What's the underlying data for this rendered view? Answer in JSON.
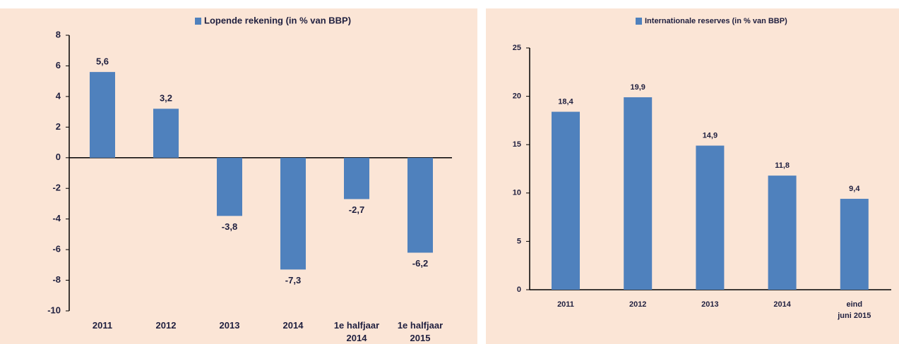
{
  "chart_data": [
    {
      "type": "bar",
      "series": [
        {
          "name": "Lopende rekening (in % van BBP)",
          "color": "#4f81bd",
          "values": [
            5.6,
            3.2,
            -3.8,
            -7.3,
            -2.7,
            -6.2
          ],
          "value_labels": [
            "5,6",
            "3,2",
            "-3,8",
            "-7,3",
            "-2,7",
            "-6,2"
          ]
        }
      ],
      "categories": [
        "2011",
        "2012",
        "2013",
        "2014",
        "1e halfjaar\n2014",
        "1e halfjaar\n2015"
      ],
      "ylim": [
        -10,
        8
      ],
      "yticks": [
        -10,
        -8,
        -6,
        -4,
        -2,
        0,
        2,
        4,
        6,
        8
      ]
    },
    {
      "type": "bar",
      "series": [
        {
          "name": "Internationale reserves (in % van BBP)",
          "color": "#4f81bd",
          "values": [
            18.4,
            19.9,
            14.9,
            11.8,
            9.4
          ],
          "value_labels": [
            "18,4",
            "19,9",
            "14,9",
            "11,8",
            "9,4"
          ]
        }
      ],
      "categories": [
        "2011",
        "2012",
        "2013",
        "2014",
        "eind\njuni 2015"
      ],
      "ylim": [
        0,
        25
      ],
      "yticks": [
        0,
        5,
        10,
        15,
        20,
        25
      ]
    }
  ]
}
